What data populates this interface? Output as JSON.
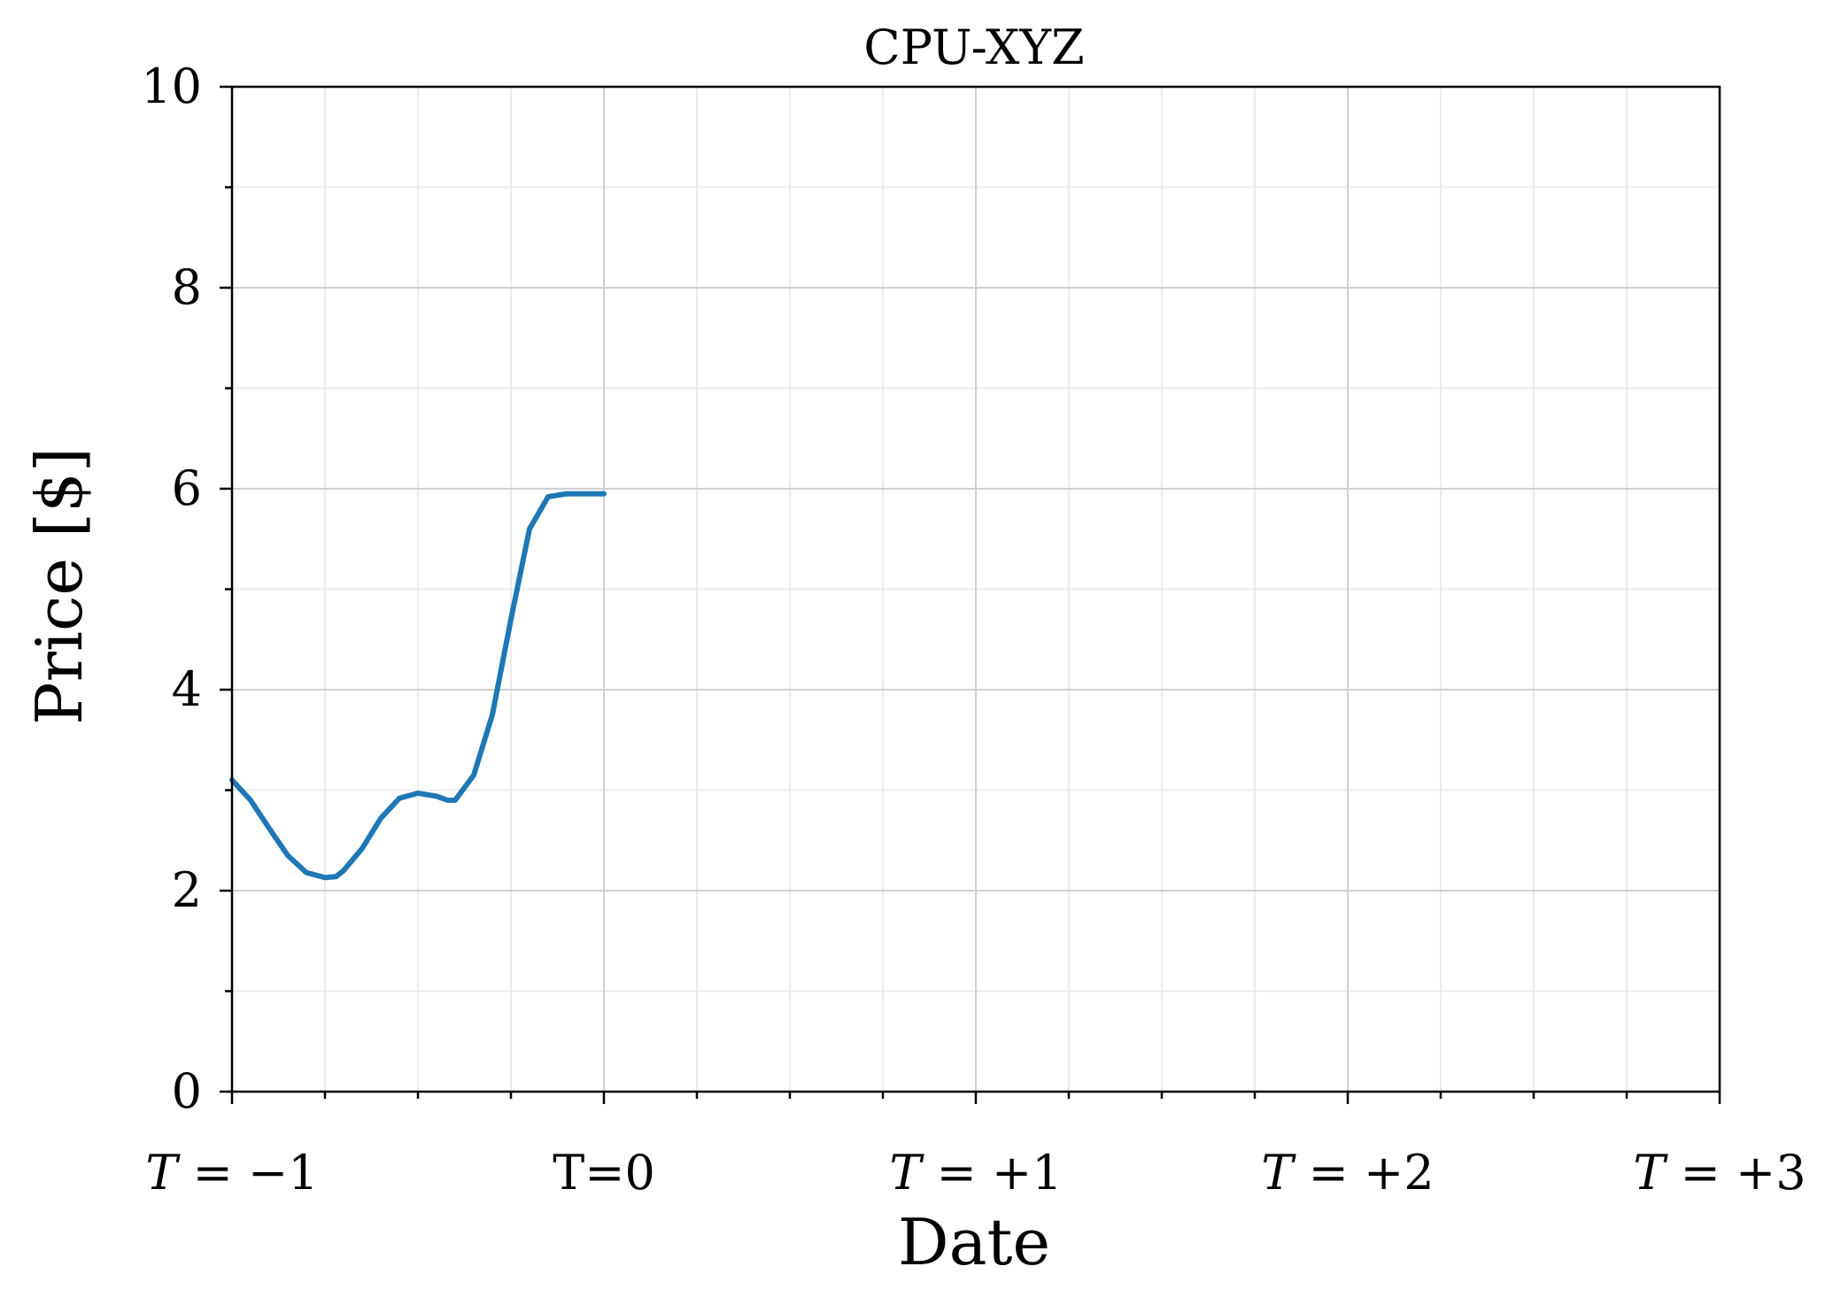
{
  "chart_data": {
    "type": "line",
    "title": "CPU-XYZ",
    "xlabel": "Date",
    "ylabel": "Price [$]",
    "xlim": [
      -1,
      3
    ],
    "ylim": [
      0,
      10
    ],
    "x_ticks": [
      {
        "value": -1,
        "label": "T = −1",
        "italic_T": true
      },
      {
        "value": 0,
        "label": "T=0",
        "italic_T": false
      },
      {
        "value": 1,
        "label": "T = +1",
        "italic_T": true
      },
      {
        "value": 2,
        "label": "T = +2",
        "italic_T": true
      },
      {
        "value": 3,
        "label": "T = +3",
        "italic_T": true
      }
    ],
    "x_minor_step": 0.25,
    "y_ticks": [
      0,
      2,
      4,
      6,
      8,
      10
    ],
    "y_minor_step": 1,
    "grid": true,
    "colors": {
      "line": "#1f77b4",
      "grid_major": "#d0d0d0",
      "grid_minor": "#ececec",
      "axes": "#000000"
    },
    "series": [
      {
        "x": [
          -1.0,
          -0.95,
          -0.9,
          -0.85,
          -0.8,
          -0.75,
          -0.72,
          -0.7,
          -0.65,
          -0.6,
          -0.55,
          -0.5,
          -0.45,
          -0.42,
          -0.4,
          -0.35,
          -0.3,
          -0.25,
          -0.2,
          -0.15,
          -0.1,
          -0.05,
          0.0
        ],
        "y": [
          3.1,
          2.9,
          2.62,
          2.35,
          2.18,
          2.13,
          2.14,
          2.2,
          2.42,
          2.72,
          2.92,
          2.97,
          2.94,
          2.9,
          2.9,
          3.15,
          3.75,
          4.7,
          5.6,
          5.92,
          5.95,
          5.95,
          5.95
        ]
      }
    ]
  }
}
